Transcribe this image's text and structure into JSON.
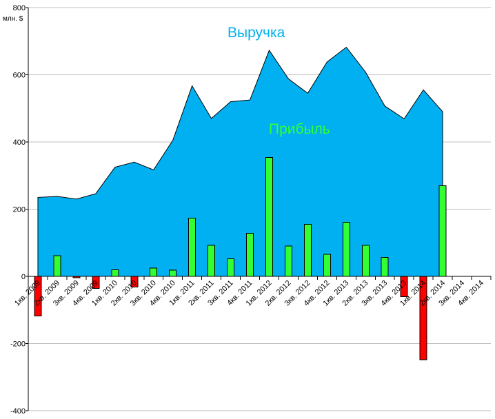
{
  "chart_data": {
    "type": "bar",
    "ylabel": "млн. $",
    "ylim": [
      -400,
      800
    ],
    "yticks": [
      -400,
      -200,
      0,
      200,
      400,
      600,
      800
    ],
    "grid": true,
    "categories": [
      "1кв. 2009",
      "2кв. 2009",
      "3кв. 2009",
      "4кв. 2009",
      "1кв. 2010",
      "2кв. 2010",
      "3кв. 2010",
      "4кв. 2010",
      "1кв. 2011",
      "2кв. 2011",
      "3кв. 2011",
      "4кв. 2011",
      "1кв. 2012",
      "2кв. 2012",
      "3кв. 2012",
      "4кв. 2012",
      "1кв. 2013",
      "2кв. 2013",
      "3кв. 2013",
      "4кв. 2013",
      "1кв. 2014",
      "2кв. 2014",
      "3кв. 2014",
      "4кв. 2014"
    ],
    "series": [
      {
        "name": "Выручка",
        "type": "area",
        "color": "#00b0f0",
        "label_color": "#00b0f0",
        "values": [
          235,
          238,
          230,
          246,
          325,
          340,
          317,
          405,
          567,
          470,
          520,
          525,
          673,
          588,
          545,
          638,
          682,
          608,
          507,
          469,
          555,
          490,
          null,
          null
        ]
      },
      {
        "name": "Прибыль",
        "type": "bar",
        "positive_color": "#33ff33",
        "negative_color": "#ff0000",
        "label_color": "#33ff33",
        "values": [
          -118,
          62,
          -4,
          -36,
          20,
          -32,
          25,
          18,
          173,
          92,
          52,
          128,
          354,
          90,
          155,
          66,
          161,
          92,
          56,
          -60,
          -248,
          270,
          null,
          null
        ]
      }
    ]
  }
}
